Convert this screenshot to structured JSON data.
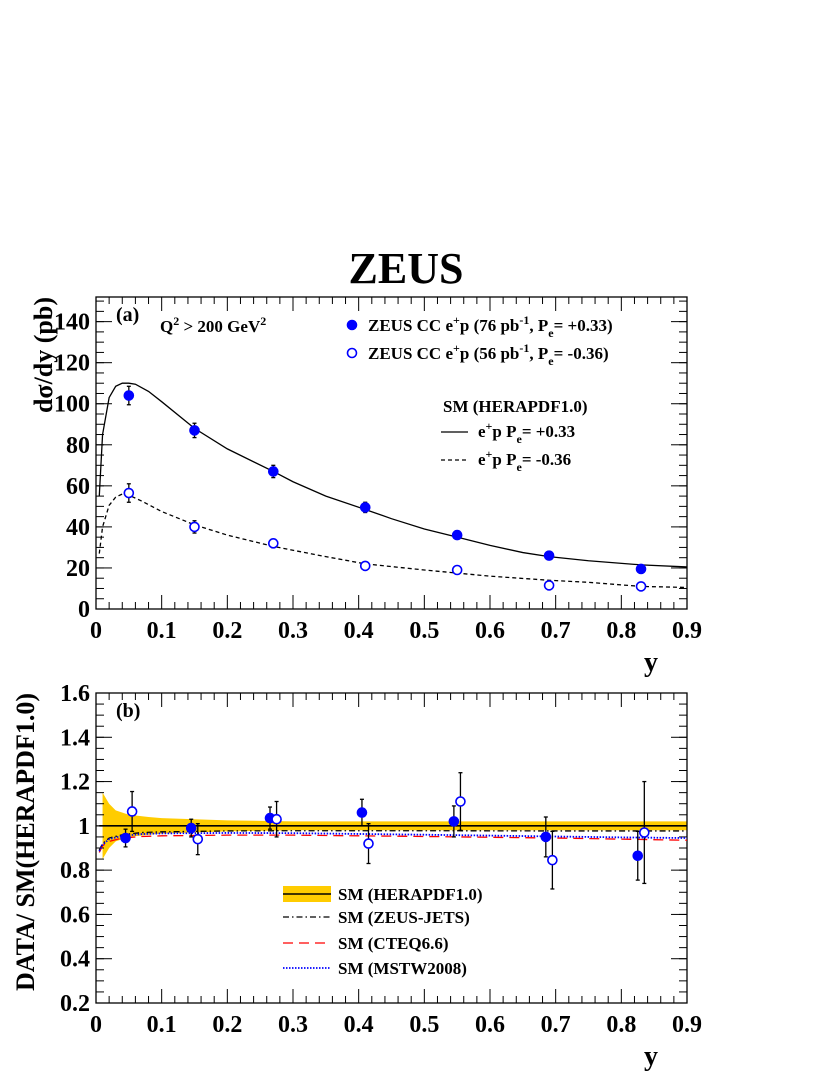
{
  "figure_title": "ZEUS",
  "chart_data": [
    {
      "type": "scatter",
      "panel_label": "(a)",
      "annotation": "Q² > 200 GeV²",
      "xlabel": "y",
      "ylabel": "dσ/dy (pb)",
      "xlim": [
        0,
        0.9
      ],
      "ylim": [
        0,
        152
      ],
      "xticks": [
        "0",
        "0.1",
        "0.2",
        "0.3",
        "0.4",
        "0.5",
        "0.6",
        "0.7",
        "0.8",
        "0.9"
      ],
      "yticks": [
        "0",
        "20",
        "40",
        "60",
        "80",
        "100",
        "120",
        "140"
      ],
      "grid": false,
      "legend_position": "top-right",
      "legend": {
        "data_pos": "ZEUS CC e⁺p (76 pb⁻¹, Pₑ= +0.33)",
        "data_neg": "ZEUS CC e⁺p (56 pb⁻¹, Pₑ= -0.36)",
        "sm_header": "SM (HERAPDF1.0)",
        "sm_pos": "e⁺p Pₑ= +0.33",
        "sm_neg": "e⁺p Pₑ= -0.36"
      },
      "series": [
        {
          "name": "ZEUS CC e⁺p (76 pb⁻¹, Pₑ= +0.33)",
          "marker": "filled-circle",
          "color": "#0000ff",
          "x": [
            0.05,
            0.15,
            0.27,
            0.41,
            0.55,
            0.69,
            0.83
          ],
          "y": [
            104,
            87,
            67,
            49.5,
            36,
            26,
            19.5
          ],
          "yerr": [
            4.5,
            3.5,
            3,
            2.5,
            2,
            2,
            2
          ]
        },
        {
          "name": "ZEUS CC e⁺p (56 pb⁻¹, Pₑ= -0.36)",
          "marker": "open-circle",
          "color": "#0000ff",
          "x": [
            0.05,
            0.15,
            0.27,
            0.41,
            0.55,
            0.69,
            0.83
          ],
          "y": [
            56.5,
            40,
            32,
            21,
            19,
            11.5,
            11
          ],
          "yerr": [
            4.5,
            3,
            2,
            1.5,
            1.5,
            1.5,
            1.5
          ]
        },
        {
          "name": "e⁺p Pₑ= +0.33",
          "line": "solid",
          "color": "#000000",
          "x": [
            0.005,
            0.01,
            0.02,
            0.03,
            0.04,
            0.05,
            0.06,
            0.08,
            0.1,
            0.15,
            0.2,
            0.27,
            0.3,
            0.35,
            0.41,
            0.45,
            0.5,
            0.55,
            0.6,
            0.65,
            0.69,
            0.75,
            0.83,
            0.9
          ],
          "y": [
            55,
            85,
            103,
            108.5,
            110,
            110,
            109.5,
            106,
            101,
            88,
            78,
            67,
            62,
            55,
            48.5,
            44,
            39,
            35,
            31,
            27.5,
            25.5,
            23.5,
            21.5,
            20.5
          ]
        },
        {
          "name": "e⁺p Pₑ= -0.36",
          "line": "dashed",
          "color": "#000000",
          "x": [
            0.005,
            0.01,
            0.02,
            0.03,
            0.04,
            0.05,
            0.07,
            0.1,
            0.15,
            0.2,
            0.27,
            0.35,
            0.41,
            0.5,
            0.55,
            0.6,
            0.69,
            0.75,
            0.83,
            0.9
          ],
          "y": [
            27,
            40,
            50.5,
            54.5,
            56,
            55.5,
            52.5,
            47.5,
            41,
            36,
            30.5,
            25.5,
            22,
            19,
            17.5,
            16,
            14,
            13,
            11,
            10.5
          ]
        }
      ]
    },
    {
      "type": "scatter",
      "panel_label": "(b)",
      "xlabel": "y",
      "ylabel": "DATA/ SM(HERAPDF1.0)",
      "xlim": [
        0,
        0.9
      ],
      "ylim": [
        0.2,
        1.6
      ],
      "xticks": [
        "0",
        "0.1",
        "0.2",
        "0.3",
        "0.4",
        "0.5",
        "0.6",
        "0.7",
        "0.8",
        "0.9"
      ],
      "yticks": [
        "0.2",
        "0.4",
        "0.6",
        "0.8",
        "1",
        "1.2",
        "1.4",
        "1.6"
      ],
      "grid": false,
      "legend_position": "bottom-center",
      "legend": {
        "herapdf": "SM (HERAPDF1.0)",
        "zeusjets": "SM (ZEUS-JETS)",
        "cteq": "SM (CTEQ6.6)",
        "mstw": "SM (MSTW2008)"
      },
      "band": {
        "name": "SM (HERAPDF1.0)",
        "color": "#ffcc00",
        "x": [
          0.01,
          0.02,
          0.03,
          0.05,
          0.08,
          0.1,
          0.15,
          0.2,
          0.3,
          0.5,
          0.7,
          0.9
        ],
        "upper": [
          1.15,
          1.1,
          1.07,
          1.05,
          1.04,
          1.035,
          1.03,
          1.025,
          1.02,
          1.02,
          1.02,
          1.02
        ],
        "lower": [
          0.85,
          0.9,
          0.93,
          0.95,
          0.96,
          0.965,
          0.97,
          0.975,
          0.98,
          0.98,
          0.98,
          0.98
        ]
      },
      "series": [
        {
          "name": "ZEUS CC e⁺p (76 pb⁻¹, Pₑ= +0.33)",
          "marker": "filled-circle",
          "color": "#0000ff",
          "x": [
            0.045,
            0.145,
            0.265,
            0.405,
            0.545,
            0.685,
            0.825
          ],
          "y": [
            0.945,
            0.99,
            1.035,
            1.06,
            1.02,
            0.95,
            0.865
          ],
          "yerr": [
            0.04,
            0.04,
            0.05,
            0.06,
            0.07,
            0.09,
            0.11
          ]
        },
        {
          "name": "ZEUS CC e⁺p (56 pb⁻¹, Pₑ= -0.36)",
          "marker": "open-circle",
          "color": "#0000ff",
          "x": [
            0.055,
            0.155,
            0.275,
            0.415,
            0.555,
            0.695,
            0.835
          ],
          "y": [
            1.065,
            0.94,
            1.03,
            0.92,
            1.11,
            0.845,
            0.97
          ],
          "yerr": [
            0.09,
            0.07,
            0.08,
            0.09,
            0.13,
            0.13,
            0.23
          ]
        },
        {
          "name": "SM (HERAPDF1.0)",
          "line": "solid",
          "color": "#000000",
          "x": [
            0.005,
            0.9
          ],
          "y": [
            1.0,
            1.0
          ]
        },
        {
          "name": "SM (ZEUS-JETS)",
          "line": "dash-dot",
          "color": "#000000",
          "x": [
            0.005,
            0.01,
            0.02,
            0.04,
            0.07,
            0.1,
            0.2,
            0.3,
            0.5,
            0.7,
            0.9
          ],
          "y": [
            0.89,
            0.92,
            0.945,
            0.96,
            0.97,
            0.973,
            0.977,
            0.978,
            0.978,
            0.977,
            0.977
          ]
        },
        {
          "name": "SM (CTEQ6.6)",
          "line": "long-dash",
          "color": "#ff0000",
          "x": [
            0.005,
            0.01,
            0.02,
            0.04,
            0.07,
            0.1,
            0.2,
            0.3,
            0.5,
            0.7,
            0.8,
            0.9
          ],
          "y": [
            0.88,
            0.91,
            0.93,
            0.945,
            0.952,
            0.955,
            0.958,
            0.958,
            0.952,
            0.945,
            0.94,
            0.935
          ]
        },
        {
          "name": "SM (MSTW2008)",
          "line": "dotted",
          "color": "#0000ff",
          "x": [
            0.005,
            0.01,
            0.02,
            0.04,
            0.07,
            0.1,
            0.2,
            0.3,
            0.5,
            0.7,
            0.8,
            0.9
          ],
          "y": [
            0.885,
            0.915,
            0.94,
            0.955,
            0.963,
            0.966,
            0.968,
            0.967,
            0.96,
            0.952,
            0.948,
            0.945
          ]
        }
      ]
    }
  ]
}
